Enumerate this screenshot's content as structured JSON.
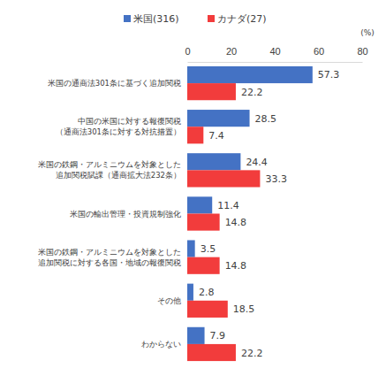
{
  "chart_data": {
    "type": "bar",
    "orientation": "horizontal",
    "xlabel": "(%)",
    "categories": [
      "米国の通商法301条に基づく追加関税",
      "中国の米国に対する報復関税\n（通商法301条に対する対抗措置）",
      "米国の鉄鋼・アルミニウムを対象とした\n追加関税賦課（通商拡大法232条）",
      "米国の輸出管理・投資規制強化",
      "米国の鉄鋼・アルミニウムを対象とした\n追加関税に対する各国・地域の報復関税",
      "その他",
      "わからない"
    ],
    "series": [
      {
        "name": "米国(316)",
        "color": "#4472c4",
        "values": [
          57.3,
          28.5,
          24.4,
          11.4,
          3.5,
          2.8,
          7.9
        ]
      },
      {
        "name": "カナダ(27)",
        "color": "#f23c3c",
        "values": [
          22.2,
          7.4,
          33.3,
          14.8,
          14.8,
          18.5,
          22.2
        ]
      }
    ],
    "xlim": [
      0,
      80
    ],
    "xticks": [
      0,
      20,
      40,
      60,
      80
    ],
    "grid": false,
    "legend": "top",
    "data_labels": true
  }
}
